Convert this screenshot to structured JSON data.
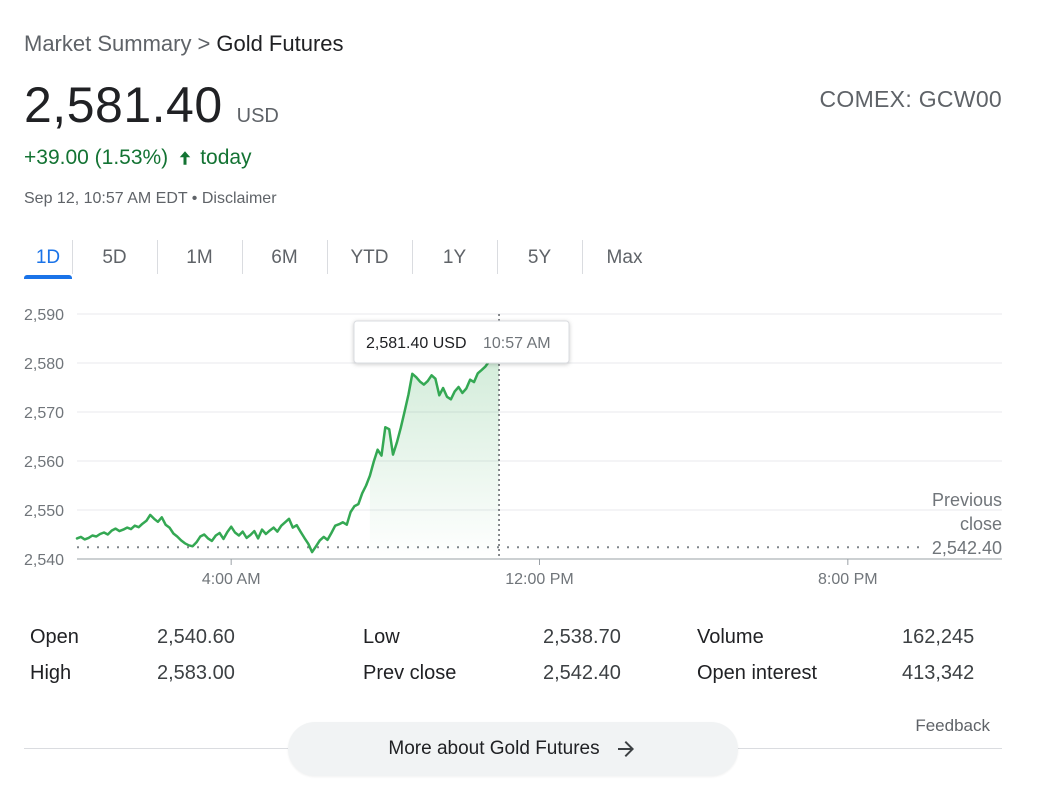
{
  "breadcrumb": {
    "parent": "Market Summary",
    "separator": ">",
    "current": "Gold Futures"
  },
  "quote": {
    "price": "2,581.40",
    "currency": "USD",
    "ticker": "COMEX: GCW00",
    "change": "+39.00 (1.53%)",
    "change_suffix": "today",
    "timestamp": "Sep 12, 10:57 AM EDT",
    "disclaimer_sep": " • ",
    "disclaimer": "Disclaimer",
    "up_color": "#137333"
  },
  "tabs": [
    {
      "label": "1D",
      "active": true
    },
    {
      "label": "5D"
    },
    {
      "label": "1M"
    },
    {
      "label": "6M"
    },
    {
      "label": "YTD"
    },
    {
      "label": "1Y"
    },
    {
      "label": "5Y"
    },
    {
      "label": "Max"
    }
  ],
  "chart_data": {
    "type": "line",
    "y_ticks": [
      "2,540",
      "2,550",
      "2,560",
      "2,570",
      "2,580",
      "2,590"
    ],
    "ylim": [
      2540,
      2590
    ],
    "x_ticks": [
      "4:00 AM",
      "12:00 PM",
      "8:00 PM"
    ],
    "x_tick_hours": [
      4,
      12,
      20
    ],
    "x_range_hours": [
      0,
      24
    ],
    "grid": true,
    "line_color": "#34a853",
    "previous_close": {
      "value": 2542.4,
      "label_lines": [
        "Previous",
        "close",
        "2,542.40"
      ]
    },
    "tooltip": {
      "price": "2,581.40 USD",
      "time": "10:57 AM"
    },
    "series": [
      {
        "x": [
          0.0,
          0.1,
          0.2,
          0.3,
          0.4,
          0.5,
          0.6,
          0.7,
          0.8,
          0.9,
          1.0,
          1.1,
          1.2,
          1.3,
          1.4,
          1.5,
          1.6,
          1.7,
          1.8,
          1.9,
          2.0,
          2.1,
          2.2,
          2.3,
          2.4,
          2.5,
          2.6,
          2.7,
          2.8,
          2.9,
          3.0,
          3.1,
          3.2,
          3.3,
          3.4,
          3.5,
          3.6,
          3.7,
          3.8,
          3.9,
          4.0,
          4.1,
          4.2,
          4.3,
          4.4,
          4.5,
          4.6,
          4.7,
          4.8,
          4.9,
          5.0,
          5.1,
          5.2,
          5.3,
          5.4,
          5.5,
          5.6,
          5.7,
          5.8,
          5.9,
          6.0,
          6.1,
          6.2,
          6.3,
          6.4,
          6.5,
          6.6,
          6.7,
          6.8,
          6.9,
          7.0,
          7.1,
          7.2,
          7.3,
          7.4,
          7.5,
          7.6,
          7.7,
          7.8,
          7.9,
          8.0,
          8.1,
          8.2,
          8.3,
          8.4,
          8.5,
          8.6,
          8.7,
          8.8,
          8.9,
          9.0,
          9.1,
          9.2,
          9.3,
          9.4,
          9.5,
          9.6,
          9.7,
          9.8,
          9.9,
          10.0,
          10.1,
          10.2,
          10.3,
          10.4,
          10.5,
          10.6,
          10.7,
          10.8,
          10.95
        ],
        "y": [
          2544.2,
          2544.5,
          2544.0,
          2544.3,
          2544.8,
          2544.6,
          2545.1,
          2545.4,
          2545.0,
          2545.8,
          2546.2,
          2545.7,
          2546.0,
          2546.4,
          2546.1,
          2546.8,
          2546.5,
          2547.2,
          2547.8,
          2549.0,
          2548.2,
          2547.6,
          2548.5,
          2547.0,
          2546.4,
          2545.2,
          2544.6,
          2543.8,
          2543.2,
          2542.8,
          2542.6,
          2543.4,
          2544.6,
          2545.0,
          2544.2,
          2543.7,
          2544.8,
          2545.3,
          2544.1,
          2545.5,
          2546.6,
          2545.4,
          2544.8,
          2545.6,
          2544.3,
          2544.9,
          2545.7,
          2544.2,
          2546.0,
          2545.1,
          2545.8,
          2546.4,
          2545.6,
          2546.8,
          2547.5,
          2548.2,
          2546.4,
          2546.9,
          2545.6,
          2544.3,
          2543.1,
          2541.4,
          2542.6,
          2543.8,
          2544.5,
          2543.9,
          2545.3,
          2546.8,
          2547.1,
          2547.5,
          2547.0,
          2549.6,
          2550.8,
          2551.2,
          2553.4,
          2555.0,
          2557.0,
          2559.9,
          2562.3,
          2561.1,
          2566.9,
          2566.5,
          2561.3,
          2563.8,
          2566.8,
          2570.1,
          2573.6,
          2577.8,
          2577.1,
          2576.2,
          2575.6,
          2576.3,
          2577.5,
          2576.8,
          2573.4,
          2574.9,
          2573.1,
          2572.6,
          2574.2,
          2575.1,
          2573.9,
          2574.8,
          2576.6,
          2576.1,
          2577.9,
          2578.6,
          2579.3,
          2580.4,
          2580.2,
          2581.4
        ]
      }
    ]
  },
  "stats": {
    "col1": [
      {
        "label": "Open",
        "value": "2,540.60"
      },
      {
        "label": "High",
        "value": "2,583.00"
      }
    ],
    "col2": [
      {
        "label": "Low",
        "value": "2,538.70"
      },
      {
        "label": "Prev close",
        "value": "2,542.40"
      }
    ],
    "col3": [
      {
        "label": "Volume",
        "value": "162,245"
      },
      {
        "label": "Open interest",
        "value": "413,342"
      }
    ]
  },
  "feedback": "Feedback",
  "more_button": {
    "label": "More about Gold Futures",
    "icon": "arrow-right-icon"
  }
}
